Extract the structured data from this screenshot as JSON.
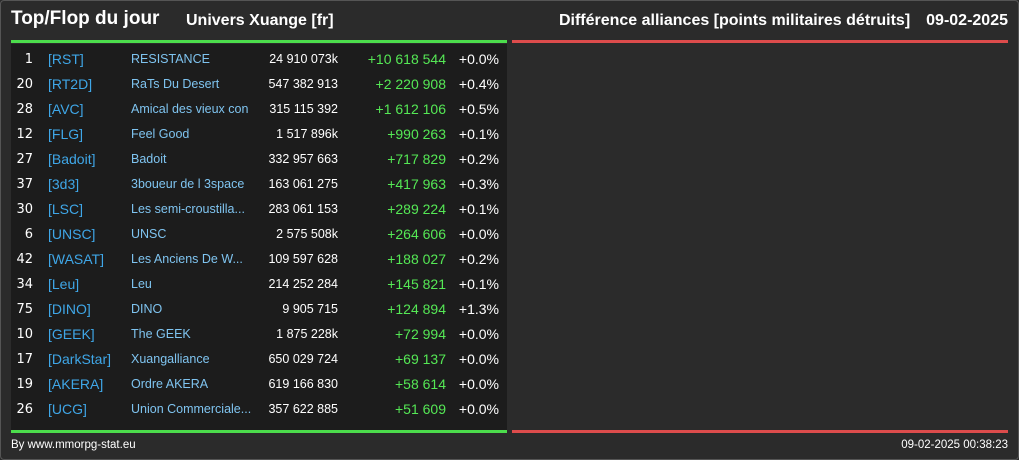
{
  "header": {
    "title": "Top/Flop du jour",
    "universe": "Univers Xuange [fr]",
    "ranking_title": "Différence alliances [points militaires détruits]",
    "date": "09-02-2025"
  },
  "colors": {
    "positive_bar": "#4cdd4c",
    "negative_bar": "#dd4c4c",
    "tag": "#3fa7e8",
    "diff_positive": "#55e855"
  },
  "top": [
    {
      "rank": "1",
      "tag": "[RST]",
      "name": "RESISTANCE",
      "points": "24 910 073k",
      "diff": "+10 618 544",
      "pct": "+0.0%"
    },
    {
      "rank": "20",
      "tag": "[RT2D]",
      "name": "RaTs Du Desert",
      "points": "547 382 913",
      "diff": "+2 220 908",
      "pct": "+0.4%"
    },
    {
      "rank": "28",
      "tag": "[AVC]",
      "name": "Amical des vieux con",
      "points": "315 115 392",
      "diff": "+1 612 106",
      "pct": "+0.5%"
    },
    {
      "rank": "12",
      "tag": "[FLG]",
      "name": "Feel Good",
      "points": "1 517 896k",
      "diff": "+990 263",
      "pct": "+0.1%"
    },
    {
      "rank": "27",
      "tag": "[Badoit]",
      "name": "Badoit",
      "points": "332 957 663",
      "diff": "+717 829",
      "pct": "+0.2%"
    },
    {
      "rank": "37",
      "tag": "[3d3]",
      "name": "3boueur de l 3space",
      "points": "163 061 275",
      "diff": "+417 963",
      "pct": "+0.3%"
    },
    {
      "rank": "30",
      "tag": "[LSC]",
      "name": "Les semi-croustilla...",
      "points": "283 061 153",
      "diff": "+289 224",
      "pct": "+0.1%"
    },
    {
      "rank": "6",
      "tag": "[UNSC]",
      "name": "UNSC",
      "points": "2 575 508k",
      "diff": "+264 606",
      "pct": "+0.0%"
    },
    {
      "rank": "42",
      "tag": "[WASAT]",
      "name": "Les Anciens De W...",
      "points": "109 597 628",
      "diff": "+188 027",
      "pct": "+0.2%"
    },
    {
      "rank": "34",
      "tag": "[Leu]",
      "name": "Leu",
      "points": "214 252 284",
      "diff": "+145 821",
      "pct": "+0.1%"
    },
    {
      "rank": "75",
      "tag": "[DINO]",
      "name": "DINO",
      "points": "9 905 715",
      "diff": "+124 894",
      "pct": "+1.3%"
    },
    {
      "rank": "10",
      "tag": "[GEEK]",
      "name": "The GEEK",
      "points": "1 875 228k",
      "diff": "+72 994",
      "pct": "+0.0%"
    },
    {
      "rank": "17",
      "tag": "[DarkStar]",
      "name": "Xuangalliance",
      "points": "650 029 724",
      "diff": "+69 137",
      "pct": "+0.0%"
    },
    {
      "rank": "19",
      "tag": "[AKERA]",
      "name": "Ordre AKERA",
      "points": "619 166 830",
      "diff": "+58 614",
      "pct": "+0.0%"
    },
    {
      "rank": "26",
      "tag": "[UCG]",
      "name": "Union Commerciale...",
      "points": "357 622 885",
      "diff": "+51 609",
      "pct": "+0.0%"
    }
  ],
  "footer": {
    "source": "By www.mmorpg-stat.eu",
    "generated": "09-02-2025 00:38:23"
  }
}
